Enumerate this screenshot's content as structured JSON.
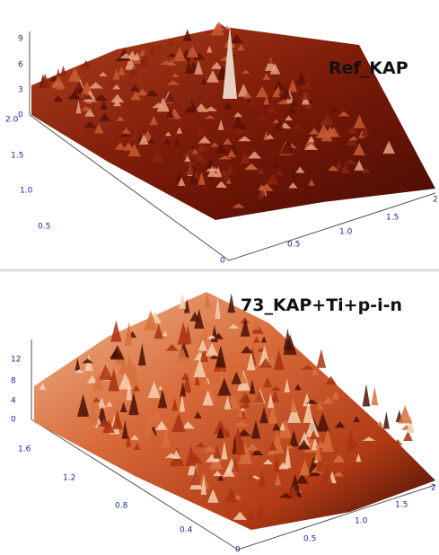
{
  "panels": [
    {
      "label": "Ref_KAP",
      "z_ticks": [
        "9",
        "6",
        "3",
        "0"
      ],
      "y_ticks": [
        "2.0",
        "1.5",
        "1.0",
        "0.5",
        "0"
      ],
      "x_ticks": [
        "0.5",
        "1.0",
        "1.5",
        "2"
      ]
    },
    {
      "label": "73_KAP+Ti+p-i-n",
      "z_ticks": [
        "12",
        "8",
        "4",
        "0"
      ],
      "y_ticks": [
        "1.6",
        "1.2",
        "0.8",
        "0.4",
        "0"
      ],
      "x_ticks": [
        "0.5",
        "1.0",
        "1.5",
        "2"
      ]
    }
  ]
}
